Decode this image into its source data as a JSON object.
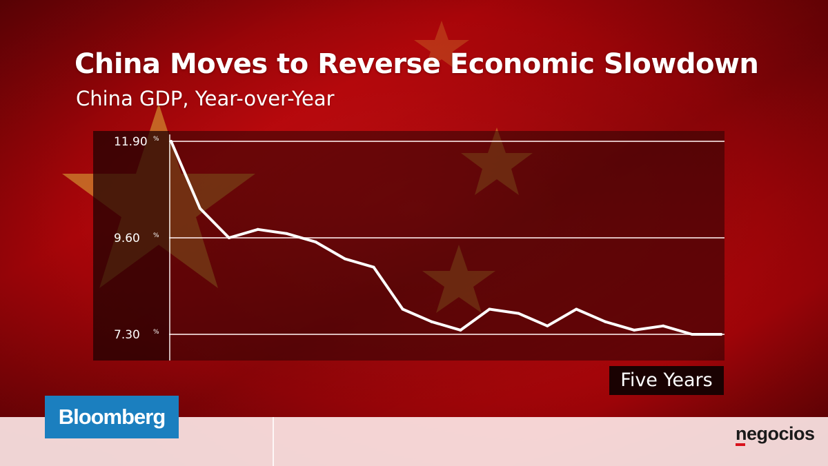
{
  "colors": {
    "background_red": "#b3070c",
    "flag_star": "#e0b23a",
    "plot_background": "#2a0404",
    "line": "#ffffff",
    "bloomberg_blue": "#1b7fbf",
    "negocios_red": "#d8121c"
  },
  "period_label": "Five Years",
  "branding": {
    "bloomberg": "Bloomberg",
    "negocios": "negocios"
  },
  "chart_data": {
    "type": "line",
    "title": "China Moves to Reverse Economic Slowdown",
    "subtitle": "China GDP, Year-over-Year",
    "xlabel": "",
    "ylabel": "",
    "ylim": [
      7.3,
      11.9
    ],
    "yticks": [
      {
        "value": 11.9,
        "label": "11.90",
        "unit": "%"
      },
      {
        "value": 9.6,
        "label": "9.60",
        "unit": "%"
      },
      {
        "value": 7.3,
        "label": "7.30",
        "unit": "%"
      }
    ],
    "grid": true,
    "legend": "none",
    "series": [
      {
        "values": [
          11.9,
          10.3,
          9.6,
          9.8,
          9.7,
          9.5,
          9.1,
          8.9,
          7.9,
          7.6,
          7.4,
          7.9,
          7.8,
          7.5,
          7.9,
          7.6,
          7.4,
          7.5,
          7.3,
          7.3
        ]
      }
    ]
  }
}
